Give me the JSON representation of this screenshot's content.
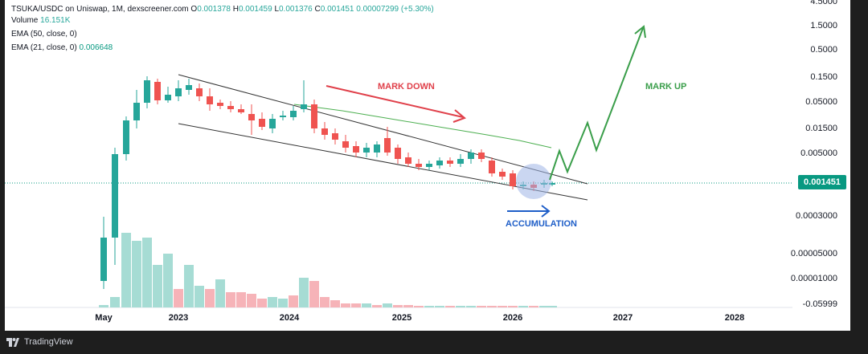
{
  "legend": {
    "symbol_line": "TSUKA/USDC on Uniswap, 1M, dexscreener.com",
    "ohlc": [
      "O",
      "0.001378",
      "H",
      "0.001459",
      "L",
      "0.001376",
      "C",
      "0.001451",
      "0.00007299 (+5.30%)"
    ],
    "volume_label": "Volume",
    "volume_value": "16.151K",
    "ema50_label": "EMA (50, close, 0)",
    "ema21_label": "EMA (21, close, 0)",
    "ema21_value": "0.006648"
  },
  "annotations": {
    "mark_down": "MARK DOWN",
    "mark_up": "MARK UP",
    "accumulation": "ACCUMULATION"
  },
  "price_axis": [
    "4.5000",
    "1.5000",
    "0.5000",
    "0.1500",
    "0.05000",
    "0.01500",
    "0.005000",
    "0.0003000",
    "0.00005000",
    "0.00001000",
    "-0.05999"
  ],
  "current_price": "0.001451",
  "time_axis": [
    "May",
    "2023",
    "2024",
    "2025",
    "2026",
    "2027",
    "2028"
  ],
  "branding": {
    "name": "TradingView"
  },
  "colors": {
    "up": "#26a69a",
    "down": "#ef5350",
    "vol_up": "#a6dcd4",
    "vol_down": "#f6b3b8",
    "mark_down": "#e0404a",
    "mark_up": "#3a9e4a",
    "accumulation": "#1e5ec8"
  },
  "chart_data": {
    "type": "candlestick",
    "symbol": "TSUKA/USDC",
    "interval": "1M",
    "scale": "log",
    "last": {
      "open": 0.001378,
      "high": 0.001459,
      "low": 0.001376,
      "close": 0.001451,
      "change": 7.299e-05,
      "change_pct": 5.3
    },
    "ema21": 0.006648,
    "volume_last": "16.151K"
  }
}
